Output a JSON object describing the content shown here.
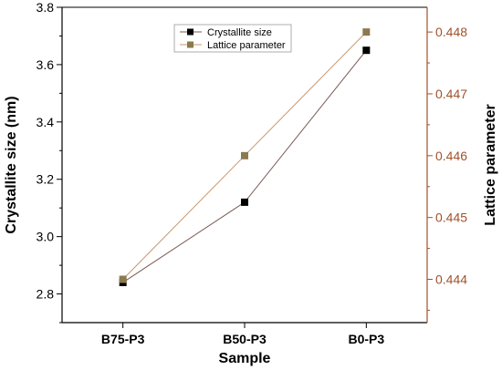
{
  "chart_data": {
    "type": "line",
    "categories": [
      "B75-P3",
      "B50-P3",
      "B0-P3"
    ],
    "xlabel": "Sample",
    "series": [
      {
        "name": "Crystallite size",
        "axis": "left",
        "marker": "square",
        "color": "#000000",
        "line_color": "#7a5a55",
        "values": [
          2.84,
          3.12,
          3.65
        ]
      },
      {
        "name": "Lattice parameter",
        "axis": "right",
        "marker": "square",
        "color": "#8b7a4e",
        "line_color": "#c9966c",
        "values": [
          0.444,
          0.446,
          0.448
        ]
      }
    ],
    "y_left": {
      "label": "Crystallite size (nm)",
      "ylim": [
        2.7,
        3.8
      ],
      "ticks": [
        "2.8",
        "3.0",
        "3.2",
        "3.4",
        "3.6",
        "3.8"
      ],
      "color": "#000000"
    },
    "y_right": {
      "label": "Lattice parameter",
      "ylim": [
        0.4433,
        0.4484
      ],
      "ticks": [
        "0.444",
        "0.445",
        "0.446",
        "0.447",
        "0.448"
      ],
      "color": "#a0522d"
    },
    "legend": "top-center",
    "grid": false
  }
}
